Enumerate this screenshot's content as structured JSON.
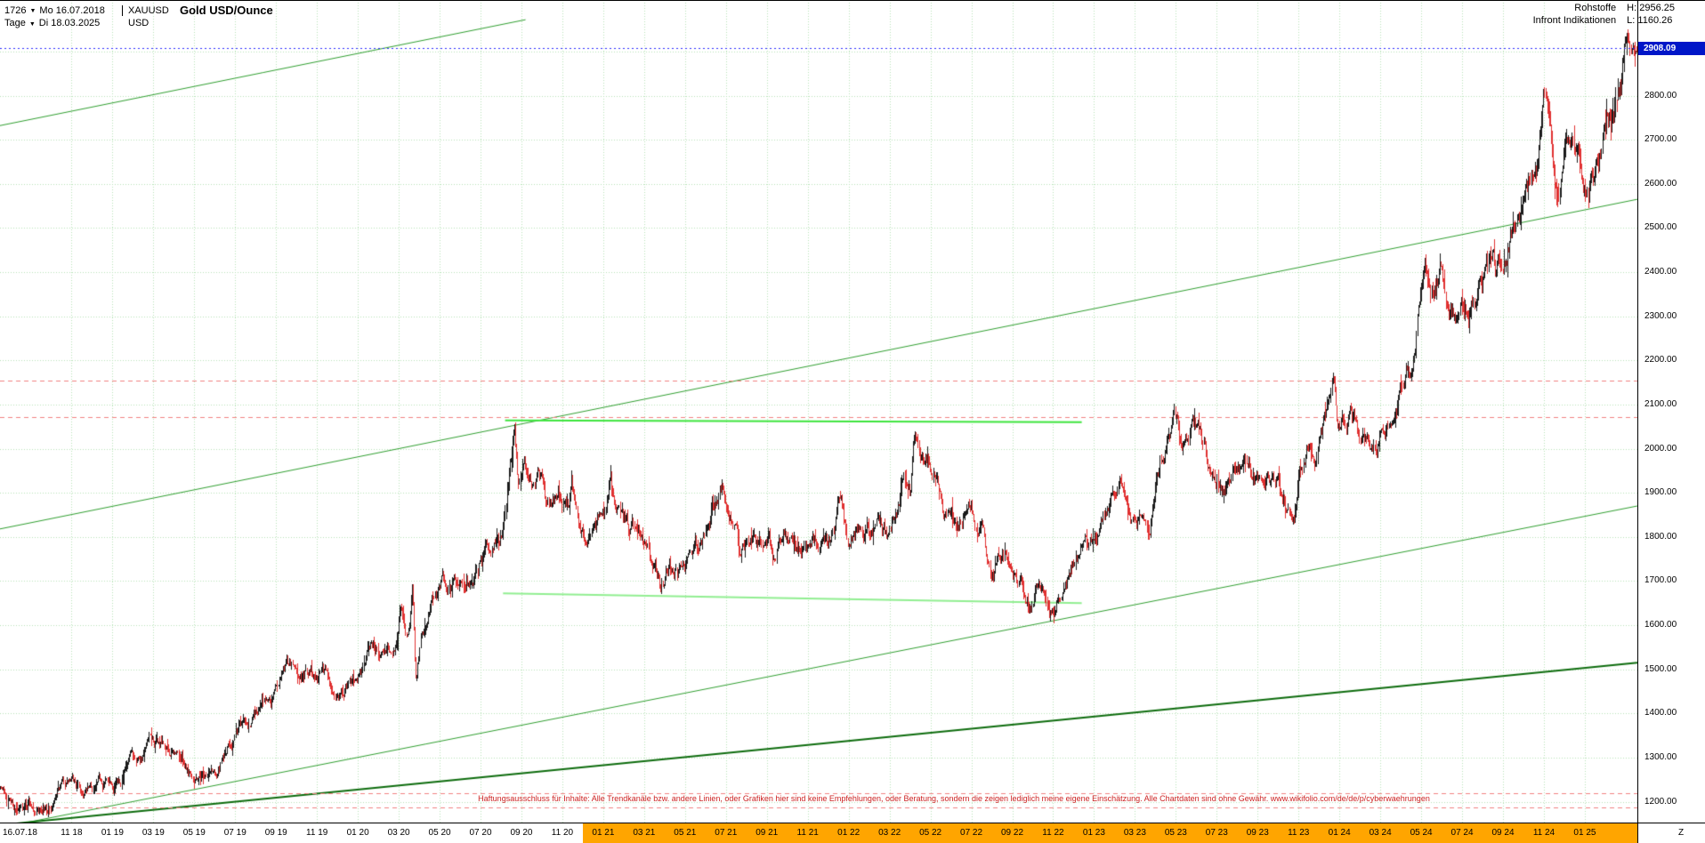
{
  "header": {
    "bar_count": "1726",
    "start_date": "Mo 16.07.2018",
    "symbol": "XAUUSD",
    "title": "Gold USD/Ounce",
    "period": "Tage",
    "end_date": "Di 18.03.2025",
    "currency": "USD",
    "feed_line1_label": "Rohstoffe",
    "feed_line2_label": "Infront Indikationen",
    "high_label": "H:",
    "high_value": "2956.25",
    "low_label": "L:",
    "low_value": "1160.26"
  },
  "disclaimer": "Haftungsausschluss für Inhalte: Alle Trendkanäle bzw. andere Linien, oder Grafiken hier sind keine Empfehlungen, oder Beratung, sondern die zeigen lediglich meine eigene Einschätzung. Alle Chartdaten sind ohne Gewähr. www.wikifolio.com/de/de/p/cyberwaehrungen",
  "axes": {
    "price_ticks": [
      "2800.00",
      "2700.00",
      "2600.00",
      "2500.00",
      "2400.00",
      "2300.00",
      "2200.00",
      "2100.00",
      "2000.00",
      "1900.00",
      "1800.00",
      "1700.00",
      "1600.00",
      "1500.00",
      "1400.00",
      "1300.00",
      "1200.00"
    ],
    "current_price": "2908.09",
    "x_first_label": "16.07.18",
    "x_labels": [
      "11 18",
      "01 19",
      "03 19",
      "05 19",
      "07 19",
      "09 19",
      "11 19",
      "01 20",
      "03 20",
      "05 20",
      "07 20",
      "09 20",
      "11 20",
      "01 21",
      "03 21",
      "05 21",
      "07 21",
      "09 21",
      "11 21",
      "01 22",
      "03 22",
      "05 22",
      "07 22",
      "09 22",
      "11 22",
      "01 23",
      "03 23",
      "05 23",
      "07 23",
      "09 23",
      "11 23",
      "01 24",
      "03 24",
      "05 24",
      "07 24",
      "09 24",
      "11 24",
      "01 25"
    ],
    "corner_label": "Z"
  },
  "chart_data": {
    "type": "candlestick",
    "title": "Gold USD/Ounce",
    "symbol": "XAUUSD",
    "currency": "USD",
    "period": "daily",
    "bars": 1726,
    "x_start": "2018-07-16",
    "x_end": "2025-03-18",
    "months_total": 80.07,
    "ylim": [
      1155,
      2975
    ],
    "grid_price_step": 100,
    "price_high": 2956.25,
    "price_low": 1160.26,
    "last_price": 2908.09,
    "x_tick_start_month": 3.5,
    "x_tick_step_months": 2,
    "grid_color": "#b6e2b6",
    "candle_up_color": "#1a1a1a",
    "candle_down_color": "#e03030",
    "current_line_color": "#2a2aff",
    "current_badge_bg": "#0016c8",
    "highlight": {
      "color": "#ffa500",
      "start_month": 28.5
    },
    "trendlines": [
      {
        "m1": 0,
        "p1": 2732,
        "m2": 25.7,
        "p2": 2972,
        "color": "#2f9e2f",
        "width": 1
      },
      {
        "m1": 0,
        "p1": 1818,
        "m2": 80.07,
        "p2": 2565,
        "color": "#2f9e2f",
        "width": 1
      },
      {
        "m1": 0,
        "p1": 1141,
        "m2": 80.07,
        "p2": 1870,
        "color": "#2f9e2f",
        "width": 1
      },
      {
        "m1": 0,
        "p1": 1147,
        "m2": 80.07,
        "p2": 1515,
        "color": "#0c6b0c",
        "width": 2
      }
    ],
    "horizontal_segments": [
      {
        "m1": 24.7,
        "p1": 2064,
        "m2": 52.9,
        "p2": 2060,
        "color": "#3ce43c",
        "width": 2
      },
      {
        "m1": 24.6,
        "p1": 1672,
        "m2": 52.9,
        "p2": 1650,
        "color": "#90ee90",
        "width": 2
      }
    ],
    "dashed_levels": [
      {
        "price": 2155,
        "color": "#f08080"
      },
      {
        "price": 2071,
        "color": "#f08080"
      },
      {
        "price": 1220,
        "color": "#f08080"
      },
      {
        "price": 1186,
        "color": "#f08080"
      }
    ],
    "series_monthly_close": [
      [
        0,
        1241
      ],
      [
        0.5,
        1212
      ],
      [
        0.9,
        1176
      ],
      [
        1.1,
        1182
      ],
      [
        1.5,
        1201
      ],
      [
        2,
        1198
      ],
      [
        2.5,
        1192
      ],
      [
        3,
        1220
      ],
      [
        3.5,
        1230
      ],
      [
        4,
        1213
      ],
      [
        4.5,
        1222
      ],
      [
        5,
        1242
      ],
      [
        5.5,
        1256
      ],
      [
        6,
        1282
      ],
      [
        6.5,
        1292
      ],
      [
        7,
        1312
      ],
      [
        7.3,
        1328
      ],
      [
        7.8,
        1315
      ],
      [
        8.3,
        1300
      ],
      [
        9,
        1288
      ],
      [
        9.5,
        1276
      ],
      [
        10,
        1284
      ],
      [
        10.6,
        1277
      ],
      [
        11,
        1305
      ],
      [
        11.5,
        1348
      ],
      [
        11.9,
        1400
      ],
      [
        12.3,
        1413
      ],
      [
        12.8,
        1425
      ],
      [
        13.3,
        1440
      ],
      [
        13.7,
        1500
      ],
      [
        14,
        1528
      ],
      [
        14.4,
        1505
      ],
      [
        14.7,
        1480
      ],
      [
        15.1,
        1492
      ],
      [
        15.5,
        1495
      ],
      [
        15.9,
        1510
      ],
      [
        16.3,
        1460
      ],
      [
        16.8,
        1465
      ],
      [
        17.3,
        1478
      ],
      [
        17.8,
        1512
      ],
      [
        18.1,
        1558
      ],
      [
        18.5,
        1557
      ],
      [
        18.9,
        1575
      ],
      [
        19.3,
        1562
      ],
      [
        19.6,
        1660
      ],
      [
        19.8,
        1585
      ],
      [
        20,
        1600
      ],
      [
        20.15,
        1672
      ],
      [
        20.32,
        1468
      ],
      [
        20.6,
        1575
      ],
      [
        20.9,
        1620
      ],
      [
        21.2,
        1690
      ],
      [
        21.6,
        1720
      ],
      [
        22,
        1700
      ],
      [
        22.4,
        1732
      ],
      [
        22.9,
        1718
      ],
      [
        23.3,
        1732
      ],
      [
        23.8,
        1772
      ],
      [
        24.2,
        1790
      ],
      [
        24.5,
        1812
      ],
      [
        24.8,
        1905
      ],
      [
        25,
        1978
      ],
      [
        25.15,
        2058
      ],
      [
        25.32,
        1932
      ],
      [
        25.5,
        1988
      ],
      [
        25.8,
        1962
      ],
      [
        26.1,
        1942
      ],
      [
        26.45,
        1952
      ],
      [
        26.7,
        1862
      ],
      [
        27,
        1892
      ],
      [
        27.4,
        1906
      ],
      [
        27.8,
        1882
      ],
      [
        27.95,
        1948
      ],
      [
        28.15,
        1862
      ],
      [
        28.45,
        1808
      ],
      [
        28.65,
        1778
      ],
      [
        28.95,
        1842
      ],
      [
        29.3,
        1856
      ],
      [
        29.6,
        1885
      ],
      [
        29.85,
        1942
      ],
      [
        30.05,
        1852
      ],
      [
        30.4,
        1856
      ],
      [
        30.8,
        1812
      ],
      [
        31.2,
        1792
      ],
      [
        31.6,
        1762
      ],
      [
        31.95,
        1722
      ],
      [
        32.3,
        1688
      ],
      [
        32.7,
        1732
      ],
      [
        33.1,
        1730
      ],
      [
        33.5,
        1748
      ],
      [
        33.9,
        1772
      ],
      [
        34.3,
        1792
      ],
      [
        34.7,
        1842
      ],
      [
        35.05,
        1882
      ],
      [
        35.35,
        1902
      ],
      [
        35.7,
        1888
      ],
      [
        36,
        1862
      ],
      [
        36.2,
        1778
      ],
      [
        36.5,
        1768
      ],
      [
        36.9,
        1802
      ],
      [
        37.3,
        1812
      ],
      [
        37.6,
        1818
      ],
      [
        37.78,
        1732
      ],
      [
        38.05,
        1792
      ],
      [
        38.4,
        1812
      ],
      [
        38.8,
        1788
      ],
      [
        39.15,
        1752
      ],
      [
        39.55,
        1752
      ],
      [
        39.95,
        1762
      ],
      [
        40.35,
        1788
      ],
      [
        40.75,
        1792
      ],
      [
        40.95,
        1852
      ],
      [
        41.15,
        1866
      ],
      [
        41.45,
        1802
      ],
      [
        41.75,
        1786
      ],
      [
        42.1,
        1792
      ],
      [
        42.5,
        1806
      ],
      [
        42.85,
        1828
      ],
      [
        43.1,
        1816
      ],
      [
        43.35,
        1796
      ],
      [
        43.65,
        1856
      ],
      [
        43.95,
        1902
      ],
      [
        44.2,
        1972
      ],
      [
        44.5,
        1912
      ],
      [
        44.72,
        2046
      ],
      [
        44.95,
        1986
      ],
      [
        45.2,
        1932
      ],
      [
        45.5,
        1952
      ],
      [
        45.78,
        1976
      ],
      [
        46.1,
        1902
      ],
      [
        46.5,
        1862
      ],
      [
        46.8,
        1812
      ],
      [
        47.05,
        1846
      ],
      [
        47.4,
        1842
      ],
      [
        47.75,
        1826
      ],
      [
        48.05,
        1808
      ],
      [
        48.25,
        1732
      ],
      [
        48.45,
        1698
      ],
      [
        48.7,
        1742
      ],
      [
        49,
        1766
      ],
      [
        49.35,
        1746
      ],
      [
        49.65,
        1732
      ],
      [
        49.95,
        1702
      ],
      [
        50.2,
        1668
      ],
      [
        50.42,
        1645
      ],
      [
        50.7,
        1666
      ],
      [
        51,
        1672
      ],
      [
        51.3,
        1652
      ],
      [
        51.58,
        1628
      ],
      [
        51.9,
        1682
      ],
      [
        52.2,
        1716
      ],
      [
        52.55,
        1752
      ],
      [
        52.9,
        1782
      ],
      [
        53.3,
        1792
      ],
      [
        53.7,
        1816
      ],
      [
        54.05,
        1842
      ],
      [
        54.45,
        1902
      ],
      [
        54.8,
        1930
      ],
      [
        55.1,
        1920
      ],
      [
        55.5,
        1862
      ],
      [
        55.88,
        1830
      ],
      [
        56.2,
        1815
      ],
      [
        56.45,
        1902
      ],
      [
        56.8,
        1972
      ],
      [
        57.1,
        1992
      ],
      [
        57.4,
        2022
      ],
      [
        57.8,
        1992
      ],
      [
        58.1,
        2012
      ],
      [
        58.4,
        2052
      ],
      [
        58.75,
        1985
      ],
      [
        59.05,
        1962
      ],
      [
        59.45,
        1942
      ],
      [
        59.85,
        1922
      ],
      [
        60.25,
        1928
      ],
      [
        60.65,
        1962
      ],
      [
        61.05,
        1966
      ],
      [
        61.45,
        1942
      ],
      [
        61.85,
        1916
      ],
      [
        62.25,
        1932
      ],
      [
        62.65,
        1876
      ],
      [
        62.95,
        1852
      ],
      [
        63.25,
        1822
      ],
      [
        63.55,
        1932
      ],
      [
        63.9,
        1985
      ],
      [
        64.25,
        1972
      ],
      [
        64.6,
        2002
      ],
      [
        64.9,
        2042
      ],
      [
        65.1,
        2092
      ],
      [
        65.18,
        2132
      ],
      [
        65.38,
        2022
      ],
      [
        65.7,
        2052
      ],
      [
        66.05,
        2065
      ],
      [
        66.45,
        2032
      ],
      [
        66.85,
        2036
      ],
      [
        67.25,
        2026
      ],
      [
        67.65,
        2042
      ],
      [
        68.05,
        2052
      ],
      [
        68.35,
        2102
      ],
      [
        68.65,
        2162
      ],
      [
        69,
        2202
      ],
      [
        69.35,
        2352
      ],
      [
        69.65,
        2382
      ],
      [
        69.95,
        2332
      ],
      [
        70.25,
        2362
      ],
      [
        70.45,
        2422
      ],
      [
        70.7,
        2342
      ],
      [
        71.05,
        2322
      ],
      [
        71.45,
        2332
      ],
      [
        71.85,
        2326
      ],
      [
        72.25,
        2362
      ],
      [
        72.65,
        2402
      ],
      [
        72.95,
        2472
      ],
      [
        73.15,
        2402
      ],
      [
        73.45,
        2452
      ],
      [
        73.85,
        2502
      ],
      [
        74.15,
        2522
      ],
      [
        74.55,
        2562
      ],
      [
        74.95,
        2632
      ],
      [
        75.25,
        2662
      ],
      [
        75.52,
        2778
      ],
      [
        75.9,
        2642
      ],
      [
        76.1,
        2572
      ],
      [
        76.35,
        2632
      ],
      [
        76.6,
        2702
      ],
      [
        76.95,
        2642
      ],
      [
        77.25,
        2652
      ],
      [
        77.55,
        2622
      ],
      [
        77.95,
        2628
      ],
      [
        78.25,
        2662
      ],
      [
        78.55,
        2722
      ],
      [
        78.95,
        2782
      ],
      [
        79.25,
        2862
      ],
      [
        79.55,
        2942
      ],
      [
        79.75,
        2882
      ],
      [
        79.95,
        2858
      ],
      [
        80.07,
        2908
      ]
    ]
  }
}
